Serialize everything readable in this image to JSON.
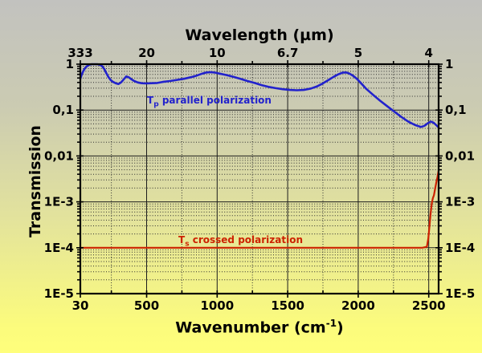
{
  "background": {
    "gradient_top": "#c2c2bf",
    "gradient_bottom": "#ffff7b"
  },
  "annotations": {
    "parallel": {
      "symbol": "T",
      "symbol_sub": "p",
      "text": " parallel polarization",
      "color": "#2222cc"
    },
    "crossed": {
      "symbol": "T",
      "symbol_sub": "s",
      "text": " crossed polarization",
      "color": "#cc2200"
    }
  },
  "titles": {
    "top": "Wavelength (µm)",
    "left": "Transmission",
    "bottom_main": "Wavenumber (cm",
    "bottom_sup": "-1",
    "bottom_end": ")"
  },
  "chart_data": {
    "type": "line",
    "title": "Wavelength (µm)",
    "xlabel": "Wavenumber (cm-1)",
    "ylabel": "Transmission",
    "xlim": [
      30,
      2570
    ],
    "ylim": [
      1e-05,
      1
    ],
    "yscale": "log",
    "grid": "major-solid, minor-dotted",
    "x_ticks": [
      {
        "v": 30,
        "label": "30"
      },
      {
        "v": 500,
        "label": "500"
      },
      {
        "v": 1000,
        "label": "1000"
      },
      {
        "v": 1500,
        "label": "1500"
      },
      {
        "v": 2000,
        "label": "2000"
      },
      {
        "v": 2500,
        "label": "2500"
      }
    ],
    "x_minor_ticks": [
      250,
      750,
      1250,
      1750,
      2250
    ],
    "top_ticks": [
      {
        "v": 30,
        "label": "333"
      },
      {
        "v": 500,
        "label": "20"
      },
      {
        "v": 1000,
        "label": "10"
      },
      {
        "v": 1500,
        "label": "6.7"
      },
      {
        "v": 2000,
        "label": "5"
      },
      {
        "v": 2500,
        "label": "4"
      }
    ],
    "y_ticks": [
      {
        "v": 1,
        "label": "1"
      },
      {
        "v": 0.1,
        "label": "0,1"
      },
      {
        "v": 0.01,
        "label": "0,01"
      },
      {
        "v": 0.001,
        "label": "1E-3"
      },
      {
        "v": 0.0001,
        "label": "1E-4"
      },
      {
        "v": 1e-05,
        "label": "1E-5"
      }
    ],
    "series": [
      {
        "name": "Tp parallel polarization",
        "color": "#2222cc",
        "width": 2.6,
        "points": [
          [
            30,
            0.48
          ],
          [
            40,
            0.6
          ],
          [
            52,
            0.72
          ],
          [
            65,
            0.83
          ],
          [
            80,
            0.92
          ],
          [
            95,
            0.975
          ],
          [
            110,
            1.0
          ],
          [
            150,
            1.0
          ],
          [
            170,
            0.97
          ],
          [
            185,
            0.9
          ],
          [
            200,
            0.78
          ],
          [
            215,
            0.63
          ],
          [
            230,
            0.52
          ],
          [
            245,
            0.45
          ],
          [
            262,
            0.41
          ],
          [
            280,
            0.385
          ],
          [
            300,
            0.37
          ],
          [
            318,
            0.4
          ],
          [
            338,
            0.47
          ],
          [
            355,
            0.54
          ],
          [
            372,
            0.52
          ],
          [
            392,
            0.47
          ],
          [
            412,
            0.43
          ],
          [
            438,
            0.4
          ],
          [
            465,
            0.385
          ],
          [
            495,
            0.38
          ],
          [
            535,
            0.385
          ],
          [
            575,
            0.39
          ],
          [
            615,
            0.41
          ],
          [
            665,
            0.43
          ],
          [
            715,
            0.455
          ],
          [
            765,
            0.48
          ],
          [
            815,
            0.52
          ],
          [
            855,
            0.565
          ],
          [
            895,
            0.625
          ],
          [
            925,
            0.66
          ],
          [
            955,
            0.67
          ],
          [
            985,
            0.655
          ],
          [
            1015,
            0.625
          ],
          [
            1065,
            0.58
          ],
          [
            1115,
            0.53
          ],
          [
            1165,
            0.48
          ],
          [
            1215,
            0.43
          ],
          [
            1265,
            0.39
          ],
          [
            1315,
            0.35
          ],
          [
            1365,
            0.32
          ],
          [
            1415,
            0.3
          ],
          [
            1465,
            0.285
          ],
          [
            1515,
            0.275
          ],
          [
            1565,
            0.27
          ],
          [
            1615,
            0.275
          ],
          [
            1665,
            0.295
          ],
          [
            1705,
            0.325
          ],
          [
            1745,
            0.375
          ],
          [
            1785,
            0.445
          ],
          [
            1825,
            0.53
          ],
          [
            1858,
            0.6
          ],
          [
            1890,
            0.655
          ],
          [
            1915,
            0.66
          ],
          [
            1938,
            0.625
          ],
          [
            1962,
            0.565
          ],
          [
            1990,
            0.48
          ],
          [
            2020,
            0.385
          ],
          [
            2060,
            0.285
          ],
          [
            2105,
            0.215
          ],
          [
            2155,
            0.16
          ],
          [
            2205,
            0.122
          ],
          [
            2255,
            0.093
          ],
          [
            2305,
            0.071
          ],
          [
            2355,
            0.056
          ],
          [
            2405,
            0.047
          ],
          [
            2445,
            0.043
          ],
          [
            2470,
            0.0455
          ],
          [
            2495,
            0.052
          ],
          [
            2515,
            0.056
          ],
          [
            2535,
            0.053
          ],
          [
            2553,
            0.047
          ],
          [
            2570,
            0.042
          ]
        ]
      },
      {
        "name": "Ts crossed polarization",
        "color": "#cc2200",
        "width": 2.2,
        "points": [
          [
            30,
            0.0001
          ],
          [
            600,
            0.0001
          ],
          [
            1200,
            0.0001
          ],
          [
            1800,
            0.0001
          ],
          [
            2300,
            0.0001
          ],
          [
            2455,
            0.0001
          ],
          [
            2487,
            0.000105
          ],
          [
            2497,
            0.00016
          ],
          [
            2506,
            0.00032
          ],
          [
            2513,
            0.00055
          ],
          [
            2521,
            0.0009
          ],
          [
            2529,
            0.0012
          ],
          [
            2537,
            0.0014
          ],
          [
            2546,
            0.002
          ],
          [
            2554,
            0.0027
          ],
          [
            2562,
            0.0035
          ],
          [
            2570,
            0.0048
          ]
        ]
      }
    ]
  },
  "style": {
    "frame_color": "#000000",
    "major_grid_color": "#1c1c1c",
    "minor_grid_color": "#2e2e2e",
    "tick_label_color": "#000000"
  }
}
